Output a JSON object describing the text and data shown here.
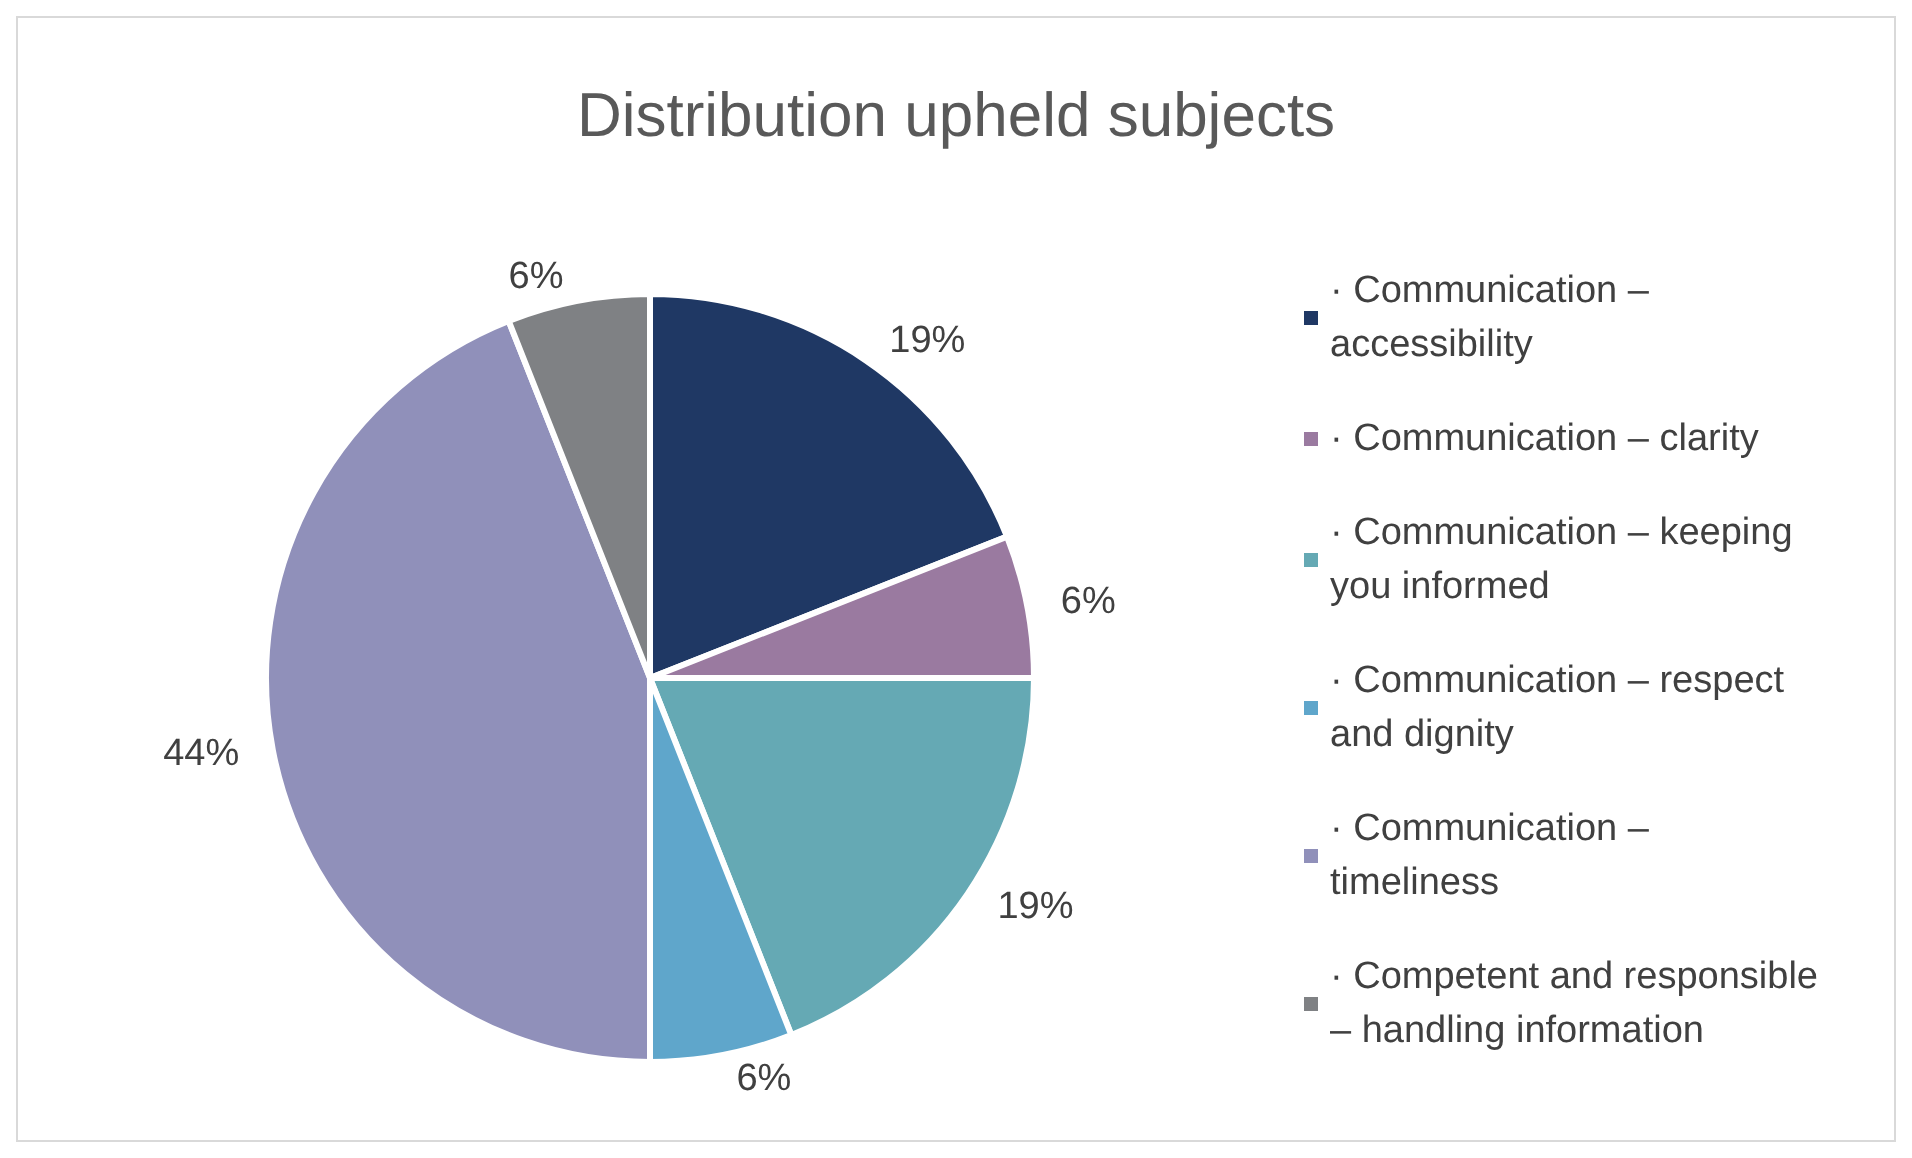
{
  "chart_data": {
    "type": "pie",
    "title": "Distribution upheld subjects",
    "categories": [
      "· Communication – accessibility",
      "· Communication – clarity",
      "· Communication – keeping you informed",
      "· Communication – respect and dignity",
      "· Communication – timeliness",
      "· Competent and responsible – handling information"
    ],
    "values": [
      19,
      6,
      19,
      6,
      44,
      6
    ],
    "colors": [
      "#1f3864",
      "#9a7aa0",
      "#65a9b4",
      "#5fa6cb",
      "#9090ba",
      "#7f8184"
    ],
    "value_labels": [
      "19%",
      "6%",
      "19%",
      "6%",
      "44%",
      "6%"
    ],
    "legend": "right"
  }
}
